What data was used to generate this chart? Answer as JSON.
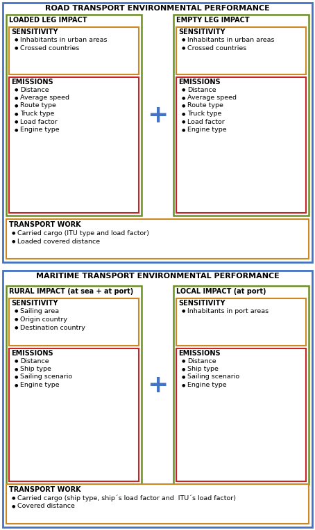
{
  "road_title": "ROAD TRANSPORT ENVIRONMENTAL PERFORMANCE",
  "maritime_title": "MARITIME TRANSPORT ENVIRONMENTAL PERFORMANCE",
  "road_left_title": "LOADED LEG IMPACT",
  "road_right_title": "EMPTY LEG IMPACT",
  "maritime_left_title": "RURAL IMPACT (at sea + at port)",
  "maritime_right_title": "LOCAL IMPACT (at port)",
  "sensitivity_label": "SENSITIVITY",
  "emissions_label": "EMISSIONS",
  "road_left_sensitivity": [
    "Inhabitants in urban areas",
    "Crossed countries"
  ],
  "road_right_sensitivity": [
    "Inhabitants in urban areas",
    "Crossed countries"
  ],
  "road_left_emissions": [
    "Distance",
    "Average speed",
    "Route type",
    "Truck type",
    "Load factor",
    "Engine type"
  ],
  "road_right_emissions": [
    "Distance",
    "Average speed",
    "Route type",
    "Truck type",
    "Load factor",
    "Engine type"
  ],
  "road_transport_work_label": "TRANSPORT WORK",
  "road_transport_work": [
    "Carried cargo (ITU type and load factor)",
    "Loaded covered distance"
  ],
  "maritime_left_sensitivity": [
    "Sailing area",
    "Origin country",
    "Destination country"
  ],
  "maritime_right_sensitivity": [
    "Inhabitants in port areas"
  ],
  "maritime_left_emissions": [
    "Distance",
    "Ship type",
    "Sailing scenario",
    "Engine type"
  ],
  "maritime_right_emissions": [
    "Distance",
    "Ship type",
    "Sailing scenario",
    "Engine type"
  ],
  "maritime_transport_work_label": "TRANSPORT WORK",
  "maritime_transport_work": [
    "Carried cargo (ship type, ship´s load factor and  ITU´s load factor)",
    "Covered distance"
  ],
  "color_outer_blue": "#4472C4",
  "color_outer_green": "#6B8E23",
  "color_sensitivity_orange": "#CC8822",
  "color_emissions_red": "#CC2222",
  "color_plus_blue": "#4472C4",
  "color_bg": "#FFFFFF",
  "color_text": "#000000"
}
